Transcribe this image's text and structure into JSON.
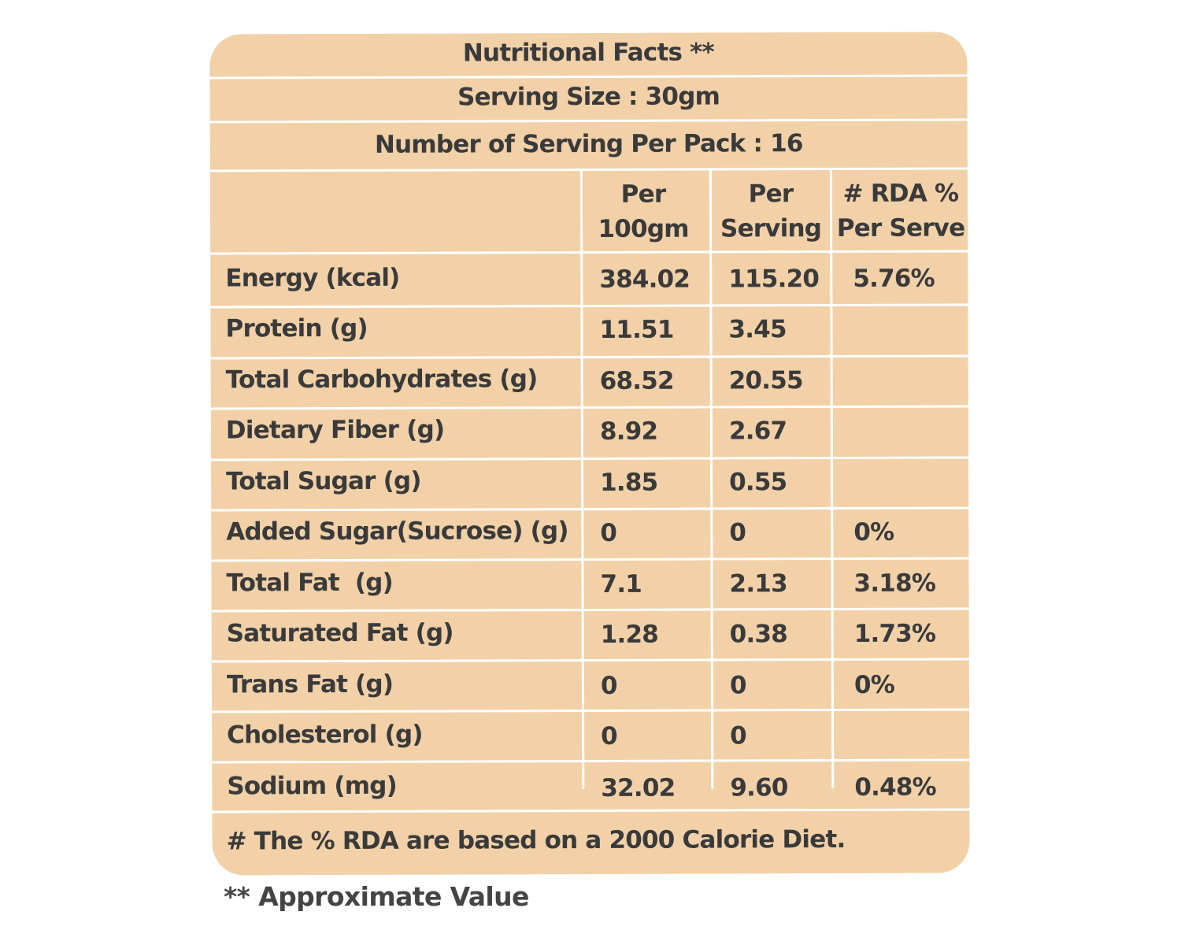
{
  "header": {
    "title": "Nutritional Facts **",
    "serving_size": "Serving Size : 30gm",
    "servings_per_pack": "Number of Serving Per Pack : 16"
  },
  "columns": {
    "per_100gm": [
      "Per",
      "100gm"
    ],
    "per_serving": [
      "Per",
      "Serving"
    ],
    "rda": [
      "# RDA %",
      "Per Serve"
    ]
  },
  "rows": [
    {
      "name": "Energy (kcal)",
      "per_100gm": "384.02",
      "per_serving": "115.20",
      "rda": "5.76%"
    },
    {
      "name": "Protein (g)",
      "per_100gm": "11.51",
      "per_serving": "3.45",
      "rda": ""
    },
    {
      "name": "Total Carbohydrates (g)",
      "per_100gm": "68.52",
      "per_serving": "20.55",
      "rda": ""
    },
    {
      "name": "Dietary Fiber (g)",
      "per_100gm": "8.92",
      "per_serving": "2.67",
      "rda": ""
    },
    {
      "name": "Total Sugar (g)",
      "per_100gm": "1.85",
      "per_serving": "0.55",
      "rda": ""
    },
    {
      "name": "Added Sugar(Sucrose) (g)",
      "per_100gm": "0",
      "per_serving": "0",
      "rda": "0%"
    },
    {
      "name": "Total Fat  (g)",
      "per_100gm": "7.1",
      "per_serving": "2.13",
      "rda": "3.18%"
    },
    {
      "name": "Saturated Fat (g)",
      "per_100gm": "1.28",
      "per_serving": "0.38",
      "rda": "1.73%"
    },
    {
      "name": "Trans Fat (g)",
      "per_100gm": "0",
      "per_serving": "0",
      "rda": "0%"
    },
    {
      "name": "Cholesterol (g)",
      "per_100gm": "0",
      "per_serving": "0",
      "rda": ""
    },
    {
      "name": "Sodium (mg)",
      "per_100gm": "32.02",
      "per_serving": "9.60",
      "rda": "0.48%"
    }
  ],
  "footnotes": {
    "rda_note": "# The % RDA are based on a 2000 Calorie Diet.",
    "approx_note": "** Approximate Value"
  },
  "colors": {
    "panel_background": "#f2d1a9",
    "divider": "#ffffff",
    "text": "#3a3a3a"
  }
}
